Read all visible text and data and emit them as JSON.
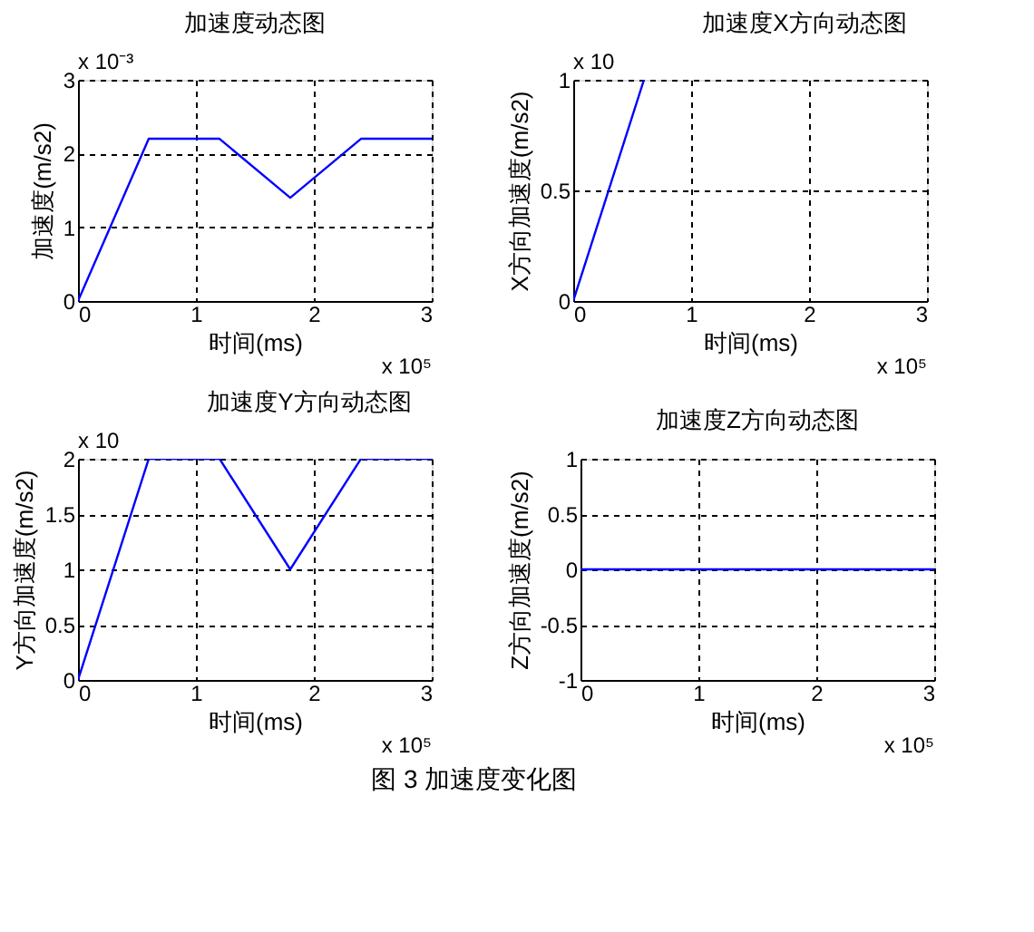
{
  "chart_data": [
    {
      "type": "line",
      "title": "加速度动态图",
      "xlabel": "时间(ms)",
      "ylabel": "加速度(m/s2)",
      "x": [
        0,
        0.6,
        1.2,
        1.8,
        2.4,
        3
      ],
      "series": [
        {
          "color": "#0000ff",
          "values": [
            0,
            2.2,
            2.2,
            1.4,
            2.2,
            2.2
          ]
        }
      ],
      "xlim": [
        0,
        3
      ],
      "xticks": [
        0,
        1,
        2,
        3
      ],
      "ylim": [
        0,
        3
      ],
      "yticks": [
        0,
        1,
        2,
        3
      ],
      "grid": true,
      "line_style": "solid",
      "annotations": [
        "x 10⁻³",
        "x 10⁵"
      ]
    },
    {
      "type": "line",
      "title": "加速度X方向动态图",
      "xlabel": "时间(ms)",
      "ylabel": "X方向加速度(m/s2)",
      "x": [
        0,
        0.6
      ],
      "series": [
        {
          "color": "#0000ff",
          "values": [
            0,
            1
          ]
        }
      ],
      "xlim": [
        0,
        3
      ],
      "xticks": [
        0,
        1,
        2,
        3
      ],
      "ylim": [
        0,
        1
      ],
      "yticks": [
        0,
        0.5,
        1
      ],
      "grid": true,
      "line_style": "solid",
      "annotations": [
        "x 10",
        "x 10⁵"
      ]
    },
    {
      "type": "line",
      "title": "加速度Y方向动态图",
      "xlabel": "时间(ms)",
      "ylabel": "Y方向加速度(m/s2)",
      "x": [
        0,
        0.6,
        1.2,
        1.8,
        2.4,
        3
      ],
      "series": [
        {
          "color": "#0000ff",
          "values": [
            0,
            2,
            2,
            1,
            2,
            2
          ]
        }
      ],
      "xlim": [
        0,
        3
      ],
      "xticks": [
        0,
        1,
        2,
        3
      ],
      "ylim": [
        0,
        2
      ],
      "yticks": [
        0,
        0.5,
        1,
        1.5,
        2
      ],
      "grid": true,
      "line_style": "solid",
      "annotations": [
        "x 10",
        "x 10⁵"
      ]
    },
    {
      "type": "line",
      "title": "加速度Z方向动态图",
      "xlabel": "时间(ms)",
      "ylabel": "Z方向加速度(m/s2)",
      "x": [
        0,
        3
      ],
      "series": [
        {
          "color": "#0000ff",
          "values": [
            0,
            0
          ]
        }
      ],
      "xlim": [
        0,
        3
      ],
      "xticks": [
        0,
        1,
        2,
        3
      ],
      "ylim": [
        -1,
        1
      ],
      "yticks": [
        -1,
        -0.5,
        0,
        0.5,
        1
      ],
      "grid": true,
      "line_style": "solid",
      "annotations": [
        null,
        "x 10⁵",
        "图 3  加速度变化图"
      ]
    }
  ]
}
